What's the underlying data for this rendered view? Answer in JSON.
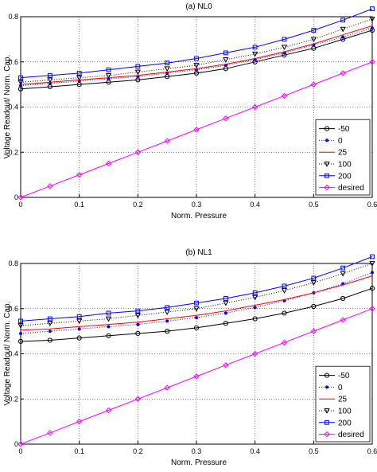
{
  "chart_data": [
    {
      "type": "line",
      "title": "(a)  NL0",
      "xlabel": "Norm. Pressure",
      "ylabel": "Voltage Readout/ Norm. Cap.",
      "xlim": [
        0,
        0.6
      ],
      "ylim": [
        0,
        0.8
      ],
      "xticks": [
        "0",
        "0.1",
        "0.2",
        "0.3",
        "0.4",
        "0.5",
        "0.6"
      ],
      "yticks": [
        "0",
        "0.2",
        "0.4",
        "0.6",
        "0.8"
      ],
      "grid": true,
      "legend_position": "bottom-right",
      "x": [
        0,
        0.05,
        0.1,
        0.15,
        0.2,
        0.25,
        0.3,
        0.35,
        0.4,
        0.45,
        0.5,
        0.55,
        0.6
      ],
      "series": [
        {
          "name": "-50",
          "color": "#000000",
          "dash": "",
          "marker": "circle",
          "values": [
            0.48,
            0.49,
            0.5,
            0.51,
            0.52,
            0.535,
            0.55,
            0.57,
            0.6,
            0.63,
            0.66,
            0.7,
            0.74
          ]
        },
        {
          "name": "0",
          "color": "#0000ff",
          "dash": "1,2",
          "marker": "dot",
          "values": [
            0.495,
            0.505,
            0.515,
            0.525,
            0.535,
            0.55,
            0.565,
            0.585,
            0.61,
            0.64,
            0.675,
            0.71,
            0.75
          ]
        },
        {
          "name": "25",
          "color": "#ff0000",
          "dash": "",
          "marker": "none",
          "values": [
            0.5,
            0.51,
            0.52,
            0.53,
            0.54,
            0.555,
            0.57,
            0.59,
            0.615,
            0.645,
            0.68,
            0.72,
            0.76
          ]
        },
        {
          "name": "100",
          "color": "#000000",
          "dash": "1,2",
          "marker": "triangle-down",
          "values": [
            0.51,
            0.52,
            0.53,
            0.54,
            0.555,
            0.57,
            0.585,
            0.61,
            0.635,
            0.665,
            0.7,
            0.745,
            0.79
          ]
        },
        {
          "name": "200",
          "color": "#0000ff",
          "dash": "",
          "marker": "square",
          "values": [
            0.53,
            0.54,
            0.55,
            0.565,
            0.58,
            0.595,
            0.615,
            0.64,
            0.665,
            0.7,
            0.74,
            0.785,
            0.835
          ]
        },
        {
          "name": "desired",
          "color": "#ff00ff",
          "dash": "",
          "marker": "diamond",
          "values": [
            0,
            0.05,
            0.1,
            0.15,
            0.2,
            0.25,
            0.3,
            0.35,
            0.4,
            0.45,
            0.5,
            0.55,
            0.6
          ]
        }
      ]
    },
    {
      "type": "line",
      "title": "(b)  NL1",
      "xlabel": "Norm. Pressure",
      "ylabel": "Voltage Readout/ Norm. Cap.",
      "xlim": [
        0,
        0.6
      ],
      "ylim": [
        0,
        0.8
      ],
      "xticks": [
        "0",
        "0.1",
        "0.2",
        "0.3",
        "0.4",
        "0.5",
        "0.6"
      ],
      "yticks": [
        "0",
        "0.2",
        "0.4",
        "0.6",
        "0.8"
      ],
      "grid": true,
      "legend_position": "bottom-right",
      "x": [
        0,
        0.05,
        0.1,
        0.15,
        0.2,
        0.25,
        0.3,
        0.35,
        0.4,
        0.45,
        0.5,
        0.55,
        0.6
      ],
      "series": [
        {
          "name": "-50",
          "color": "#000000",
          "dash": "",
          "marker": "circle",
          "values": [
            0.455,
            0.46,
            0.47,
            0.48,
            0.49,
            0.5,
            0.515,
            0.535,
            0.555,
            0.58,
            0.61,
            0.645,
            0.69
          ]
        },
        {
          "name": "0",
          "color": "#0000ff",
          "dash": "1,2",
          "marker": "dot",
          "values": [
            0.49,
            0.5,
            0.51,
            0.52,
            0.53,
            0.545,
            0.56,
            0.58,
            0.605,
            0.635,
            0.67,
            0.71,
            0.76
          ]
        },
        {
          "name": "25",
          "color": "#ff0000",
          "dash": "",
          "marker": "none",
          "values": [
            0.505,
            0.51,
            0.52,
            0.53,
            0.54,
            0.555,
            0.57,
            0.59,
            0.615,
            0.64,
            0.67,
            0.705,
            0.745
          ]
        },
        {
          "name": "100",
          "color": "#000000",
          "dash": "1,2",
          "marker": "triangle-down",
          "values": [
            0.525,
            0.535,
            0.545,
            0.555,
            0.57,
            0.585,
            0.6,
            0.625,
            0.65,
            0.68,
            0.715,
            0.755,
            0.8
          ]
        },
        {
          "name": "200",
          "color": "#0000ff",
          "dash": "",
          "marker": "square",
          "values": [
            0.545,
            0.555,
            0.565,
            0.58,
            0.59,
            0.605,
            0.625,
            0.645,
            0.67,
            0.7,
            0.735,
            0.78,
            0.83
          ]
        },
        {
          "name": "desired",
          "color": "#ff00ff",
          "dash": "",
          "marker": "diamond",
          "values": [
            0,
            0.05,
            0.1,
            0.15,
            0.2,
            0.25,
            0.3,
            0.35,
            0.4,
            0.45,
            0.5,
            0.55,
            0.6
          ]
        }
      ]
    }
  ]
}
